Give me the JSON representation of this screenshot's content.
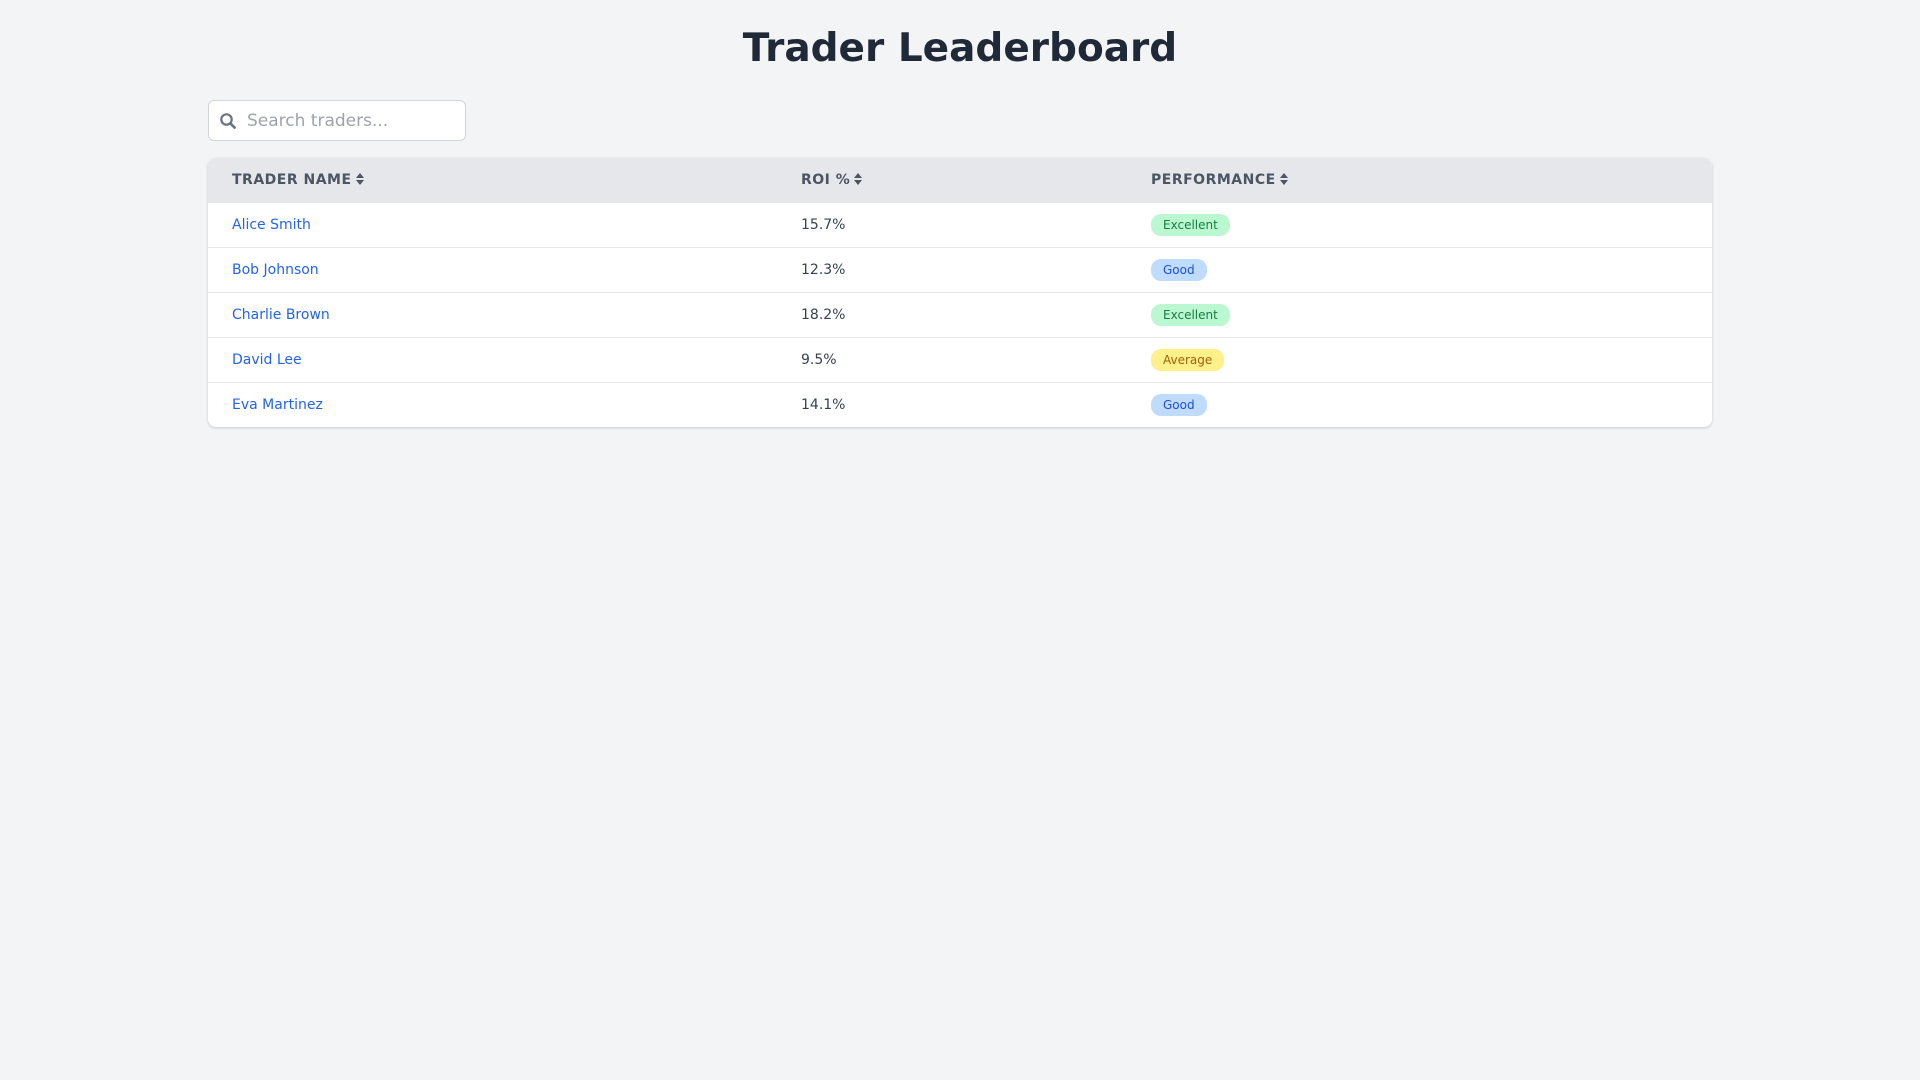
{
  "page": {
    "title": "Trader Leaderboard"
  },
  "search": {
    "placeholder": "Search traders...",
    "value": ""
  },
  "table": {
    "columns": [
      "Trader Name",
      "ROI %",
      "Performance"
    ],
    "rows": [
      {
        "name": "Alice Smith",
        "roi": "15.7%",
        "performance": "Excellent",
        "level": "excellent"
      },
      {
        "name": "Bob Johnson",
        "roi": "12.3%",
        "performance": "Good",
        "level": "good"
      },
      {
        "name": "Charlie Brown",
        "roi": "18.2%",
        "performance": "Excellent",
        "level": "excellent"
      },
      {
        "name": "David Lee",
        "roi": "9.5%",
        "performance": "Average",
        "level": "average"
      },
      {
        "name": "Eva Martinez",
        "roi": "14.1%",
        "performance": "Good",
        "level": "good"
      }
    ]
  },
  "icons": {
    "search": "search-icon",
    "sort": "sort-icon"
  },
  "colors": {
    "link": "#2563eb",
    "excellent_bg": "#bbf7d0",
    "good_bg": "#bfdbfe",
    "average_bg": "#fef08a",
    "header_bg": "#e5e7eb",
    "page_bg": "#f3f4f6"
  }
}
